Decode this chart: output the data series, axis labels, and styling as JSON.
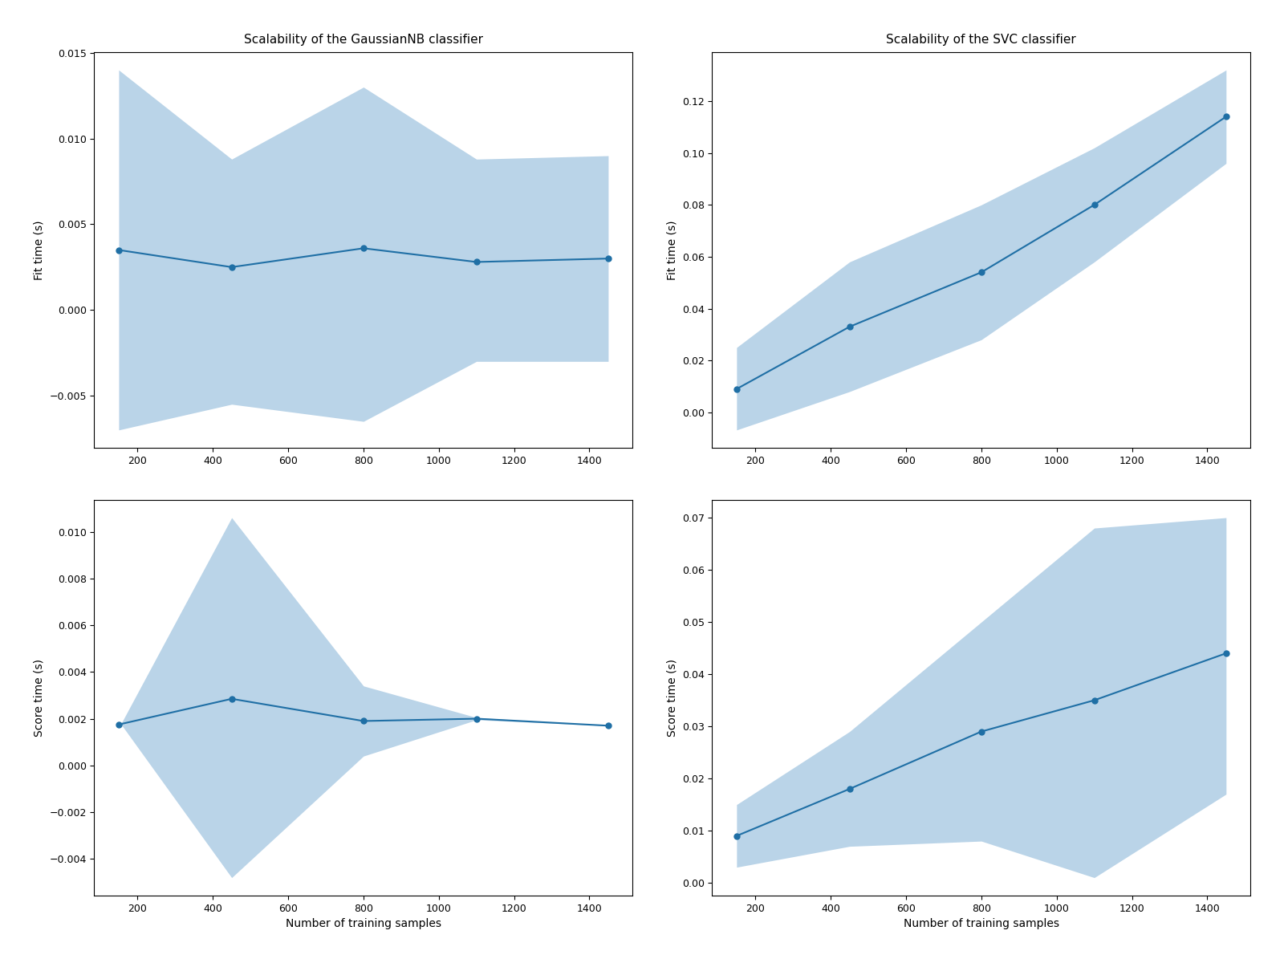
{
  "x": [
    150,
    450,
    800,
    1100,
    1450
  ],
  "gnb_fit_mean": [
    0.0035,
    0.0025,
    0.0036,
    0.0028,
    0.003
  ],
  "gnb_fit_upper": [
    0.014,
    0.0088,
    0.013,
    0.0088,
    0.009
  ],
  "gnb_fit_lower": [
    -0.007,
    -0.0055,
    -0.0065,
    -0.003,
    -0.003
  ],
  "gnb_score_mean": [
    0.00175,
    0.00285,
    0.0019,
    0.002,
    0.0017
  ],
  "gnb_score_upper": [
    0.0016,
    0.0106,
    0.0034,
    0.00205,
    0.0017
  ],
  "gnb_score_lower": [
    0.0019,
    -0.0048,
    0.0004,
    0.00195,
    0.0017
  ],
  "svc_fit_mean": [
    0.009,
    0.033,
    0.054,
    0.08,
    0.114
  ],
  "svc_fit_upper": [
    0.025,
    0.058,
    0.08,
    0.102,
    0.132
  ],
  "svc_fit_lower": [
    -0.0068,
    0.008,
    0.028,
    0.058,
    0.096
  ],
  "svc_score_mean": [
    0.009,
    0.018,
    0.029,
    0.035,
    0.044
  ],
  "svc_score_upper": [
    0.015,
    0.029,
    0.05,
    0.068,
    0.07
  ],
  "svc_score_lower": [
    0.003,
    0.007,
    0.008,
    0.001,
    0.017
  ],
  "line_color": "#1f6fa5",
  "fill_color": "#bad4e8",
  "title_gnb": "Scalability of the GaussianNB classifier",
  "title_svc": "Scalability of the SVC classifier",
  "ylabel_fit": "Fit time (s)",
  "ylabel_score": "Score time (s)",
  "xlabel": "Number of training samples",
  "bg_color": "#ffffff"
}
